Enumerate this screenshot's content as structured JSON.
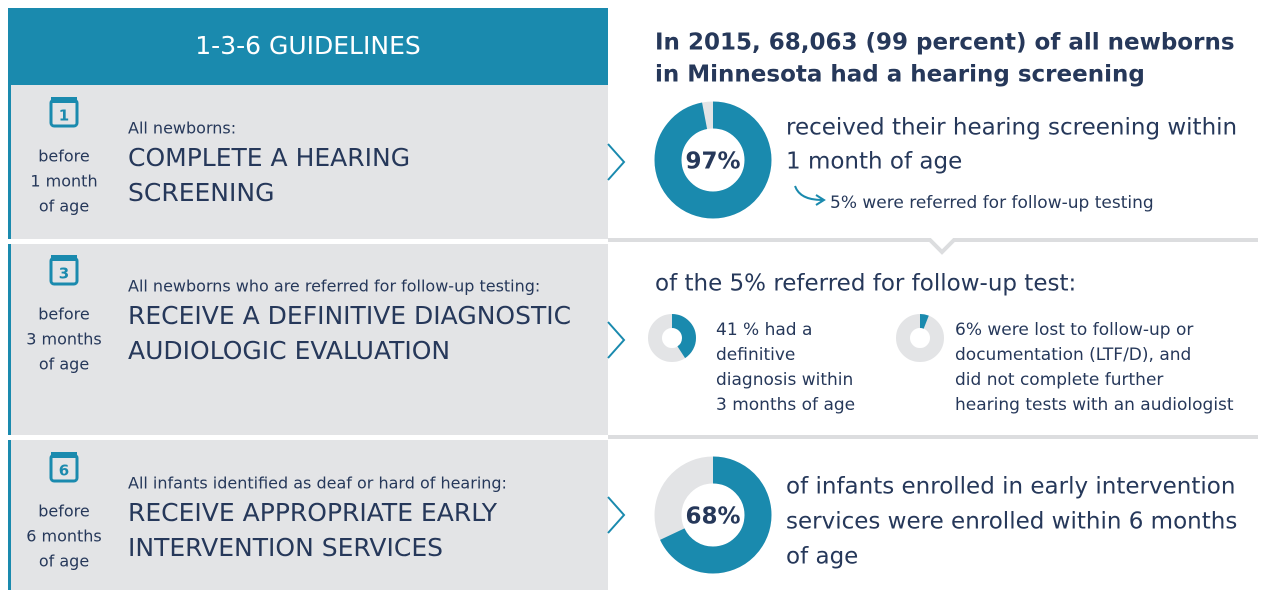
{
  "guidelines": {
    "title": "1-3-6 GUIDELINES",
    "rows": [
      {
        "calendar": "1",
        "timing": [
          "before",
          "1 month",
          "of age"
        ],
        "audience": "All newborns:",
        "action": [
          "COMPLETE A HEARING",
          "SCREENING"
        ]
      },
      {
        "calendar": "3",
        "timing": [
          "before",
          "3 months",
          "of age"
        ],
        "audience": "All newborns who are referred for follow-up testing:",
        "action": [
          "RECEIVE A DEFINITIVE DIAGNOSTIC",
          "AUDIOLOGIC EVALUATION"
        ]
      },
      {
        "calendar": "6",
        "timing": [
          "before",
          "6 months",
          "of age"
        ],
        "audience": "All infants identified as deaf or hard of hearing:",
        "action": [
          "RECEIVE APPROPRIATE EARLY",
          "INTERVENTION SERVICES"
        ]
      }
    ]
  },
  "results": {
    "headline": [
      "In 2015, 68,063 (99 percent) of all newborns",
      "in Minnesota had a hearing screening"
    ],
    "screening": {
      "value": 97,
      "value_label": "97%",
      "text": [
        "received their hearing screening within",
        "1 month of age"
      ],
      "note": "5% were referred for follow-up testing"
    },
    "diagnosis": {
      "heading": "of the 5% referred for follow-up test:",
      "items": [
        {
          "value": 41,
          "text": [
            "41 % had a",
            "definitive",
            "diagnosis within",
            "3 months of age"
          ]
        },
        {
          "value": 6,
          "text": [
            "6% were lost to follow-up or",
            "documentation (LTF/D), and",
            "did not complete further",
            "hearing tests with an audiologist"
          ]
        }
      ]
    },
    "intervention": {
      "value": 68,
      "value_label": "68%",
      "text": [
        "of infants enrolled in early intervention",
        "services were enrolled within 6 months",
        "of age"
      ]
    }
  }
}
